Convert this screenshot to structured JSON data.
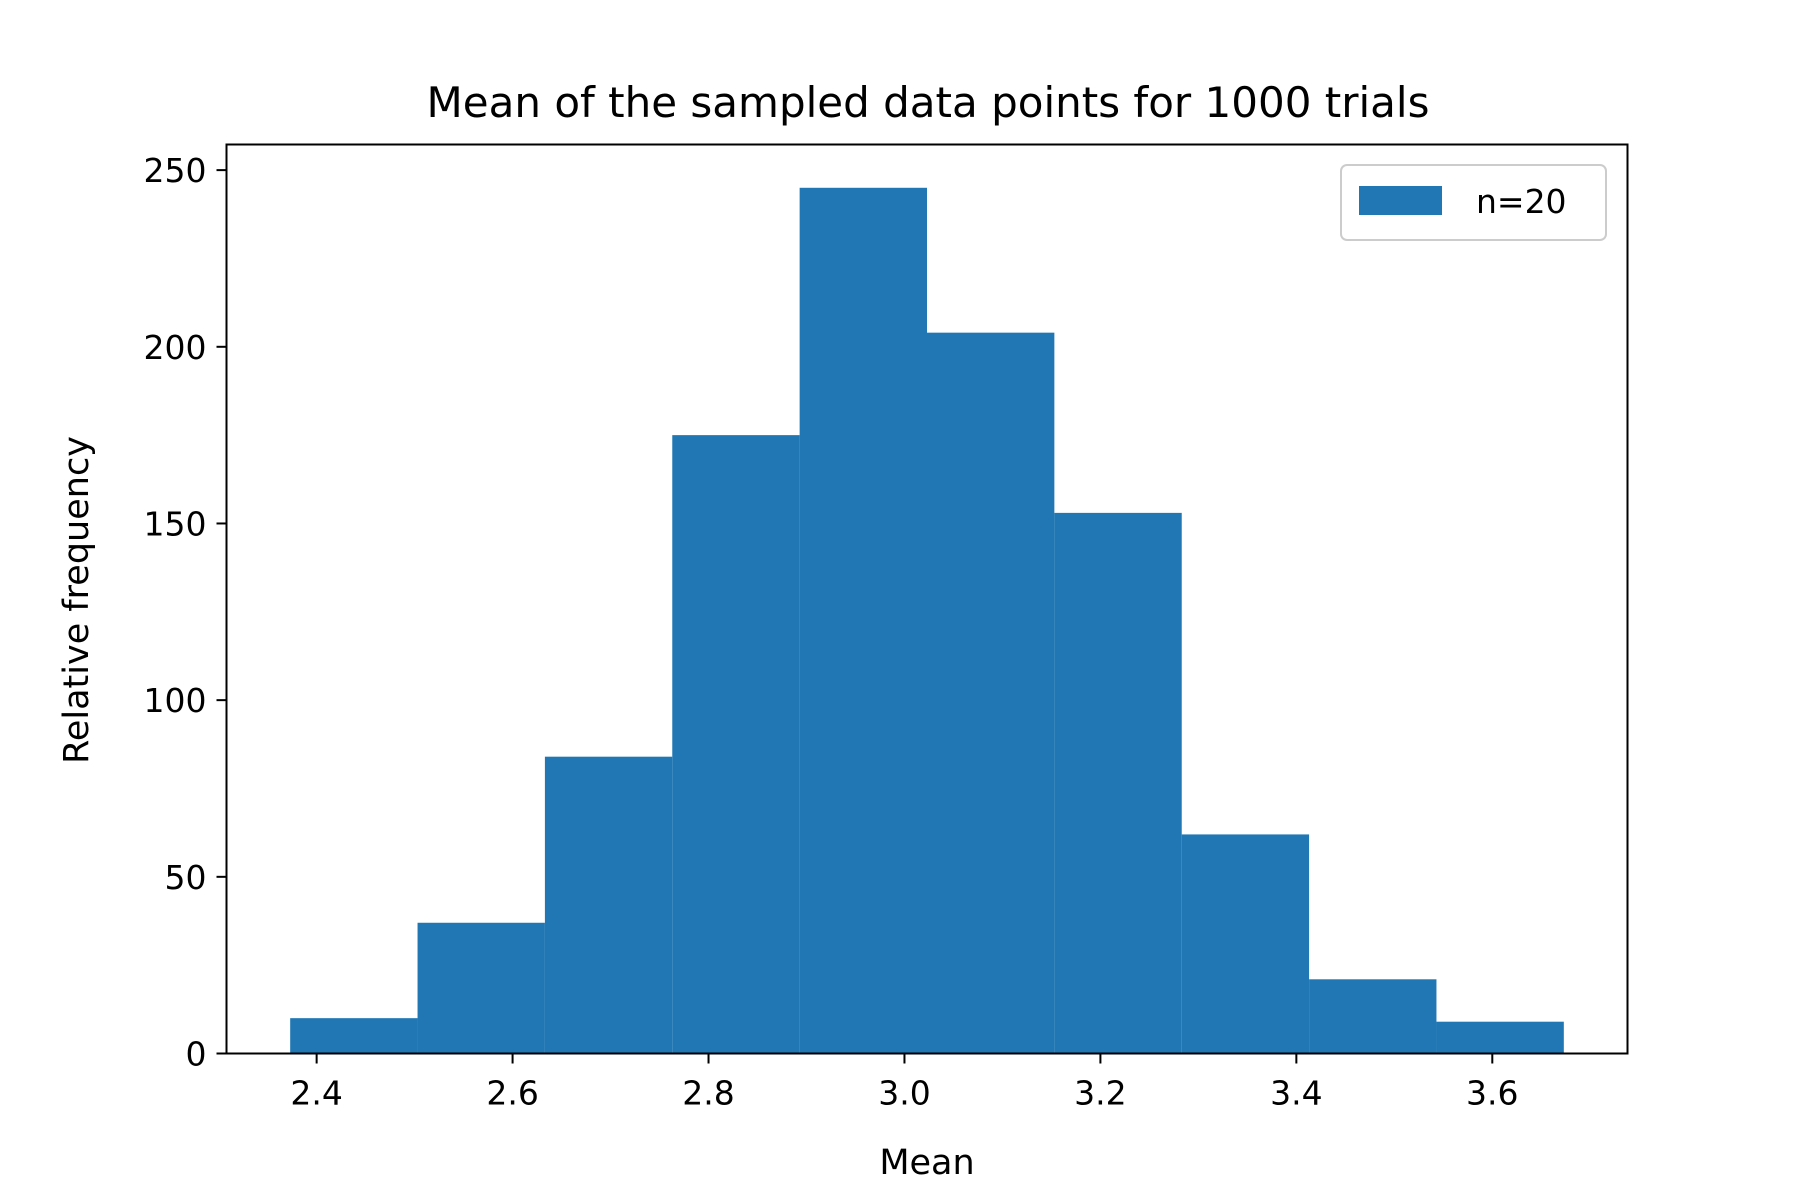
{
  "chart_data": {
    "type": "bar",
    "title": "Mean of the sampled data points for 1000 trials",
    "xlabel": "Mean",
    "ylabel": "Relative frequency",
    "bins": [
      {
        "start": 2.373,
        "end": 2.503,
        "count": 10
      },
      {
        "start": 2.503,
        "end": 2.633,
        "count": 37
      },
      {
        "start": 2.633,
        "end": 2.763,
        "count": 84
      },
      {
        "start": 2.763,
        "end": 2.893,
        "count": 175
      },
      {
        "start": 2.893,
        "end": 3.023,
        "count": 245
      },
      {
        "start": 3.023,
        "end": 3.153,
        "count": 204
      },
      {
        "start": 3.153,
        "end": 3.283,
        "count": 153
      },
      {
        "start": 3.283,
        "end": 3.413,
        "count": 62
      },
      {
        "start": 3.413,
        "end": 3.543,
        "count": 21
      },
      {
        "start": 3.543,
        "end": 3.673,
        "count": 9
      }
    ],
    "xlim": [
      2.308,
      3.738
    ],
    "ylim": [
      0,
      257.25
    ],
    "xticks": [
      "2.4",
      "2.6",
      "2.8",
      "3.0",
      "3.2",
      "3.4",
      "3.6"
    ],
    "yticks": [
      "0",
      "50",
      "100",
      "150",
      "200",
      "250"
    ],
    "series": [
      {
        "name": "n=20",
        "color": "#2077b4"
      }
    ],
    "legend": "top-right",
    "grid": false
  }
}
